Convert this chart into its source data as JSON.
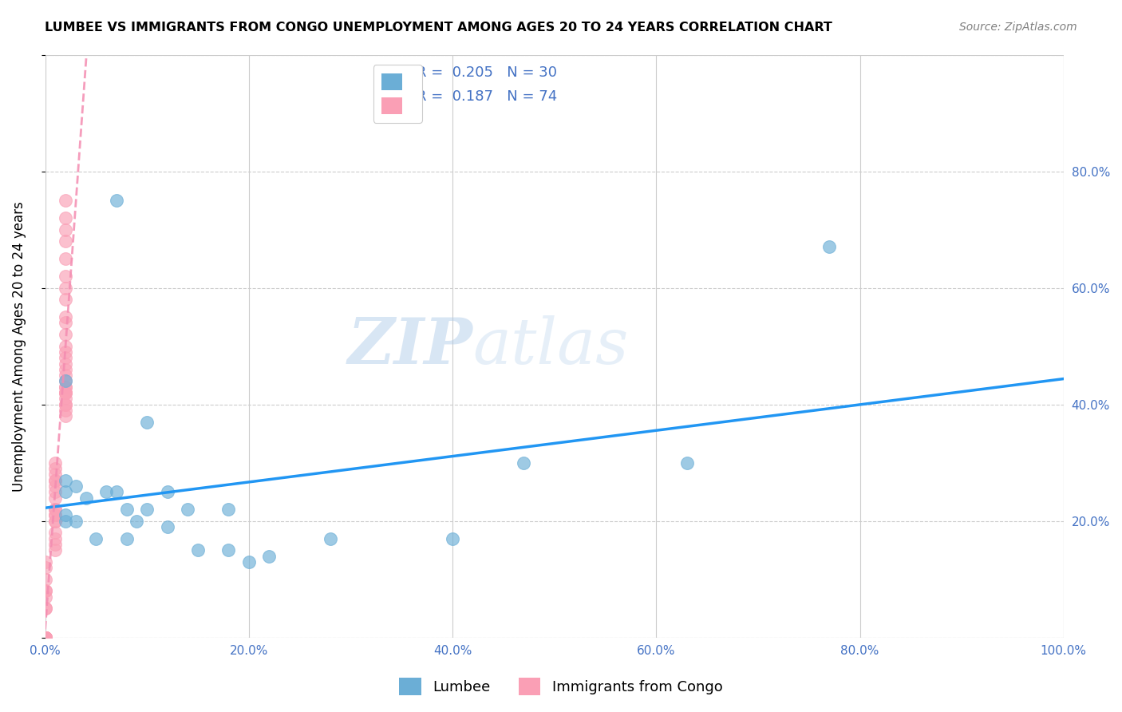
{
  "title": "LUMBEE VS IMMIGRANTS FROM CONGO UNEMPLOYMENT AMONG AGES 20 TO 24 YEARS CORRELATION CHART",
  "source": "Source: ZipAtlas.com",
  "ylabel": "Unemployment Among Ages 20 to 24 years",
  "xlim": [
    0,
    1.0
  ],
  "ylim": [
    0,
    1.0
  ],
  "xticks": [
    0.0,
    0.2,
    0.4,
    0.6,
    0.8,
    1.0
  ],
  "yticks": [
    0.0,
    0.2,
    0.4,
    0.6,
    0.8,
    1.0
  ],
  "xticklabels": [
    "0.0%",
    "20.0%",
    "40.0%",
    "60.0%",
    "80.0%",
    "100.0%"
  ],
  "right_yticklabels": [
    "",
    "20.0%",
    "40.0%",
    "60.0%",
    "80.0%",
    ""
  ],
  "lumbee_color": "#6baed6",
  "congo_color": "#fa9fb5",
  "lumbee_line_color": "#2196F3",
  "congo_line_color": "#f48cb1",
  "lumbee_R": "0.205",
  "lumbee_N": "30",
  "congo_R": "0.187",
  "congo_N": "74",
  "legend_label_1": "Lumbee",
  "legend_label_2": "Immigrants from Congo",
  "watermark_zip": "ZIP",
  "watermark_atlas": "atlas",
  "lumbee_x": [
    0.02,
    0.07,
    0.02,
    0.02,
    0.02,
    0.02,
    0.03,
    0.03,
    0.04,
    0.05,
    0.06,
    0.07,
    0.08,
    0.08,
    0.09,
    0.1,
    0.1,
    0.12,
    0.12,
    0.14,
    0.15,
    0.18,
    0.18,
    0.2,
    0.22,
    0.28,
    0.4,
    0.47,
    0.63,
    0.77
  ],
  "lumbee_y": [
    0.2,
    0.75,
    0.44,
    0.25,
    0.27,
    0.21,
    0.26,
    0.2,
    0.24,
    0.17,
    0.25,
    0.25,
    0.17,
    0.22,
    0.2,
    0.22,
    0.37,
    0.25,
    0.19,
    0.22,
    0.15,
    0.15,
    0.22,
    0.13,
    0.14,
    0.17,
    0.17,
    0.3,
    0.3,
    0.67
  ],
  "congo_x": [
    0.0,
    0.0,
    0.0,
    0.0,
    0.0,
    0.0,
    0.0,
    0.0,
    0.0,
    0.0,
    0.0,
    0.0,
    0.0,
    0.0,
    0.0,
    0.0,
    0.0,
    0.0,
    0.0,
    0.0,
    0.0,
    0.0,
    0.0,
    0.0,
    0.0,
    0.0,
    0.0,
    0.0,
    0.01,
    0.01,
    0.01,
    0.01,
    0.01,
    0.01,
    0.01,
    0.01,
    0.01,
    0.01,
    0.01,
    0.01,
    0.01,
    0.01,
    0.01,
    0.01,
    0.01,
    0.01,
    0.02,
    0.02,
    0.02,
    0.02,
    0.02,
    0.02,
    0.02,
    0.02,
    0.02,
    0.02,
    0.02,
    0.02,
    0.02,
    0.02,
    0.02,
    0.02,
    0.02,
    0.02,
    0.02,
    0.02,
    0.02,
    0.02,
    0.02,
    0.02,
    0.02,
    0.02,
    0.02,
    0.02
  ],
  "congo_y": [
    0.0,
    0.0,
    0.0,
    0.0,
    0.0,
    0.0,
    0.0,
    0.0,
    0.0,
    0.0,
    0.0,
    0.0,
    0.0,
    0.0,
    0.0,
    0.0,
    0.0,
    0.0,
    0.0,
    0.0,
    0.05,
    0.05,
    0.07,
    0.08,
    0.08,
    0.1,
    0.12,
    0.13,
    0.15,
    0.16,
    0.17,
    0.18,
    0.2,
    0.2,
    0.21,
    0.21,
    0.22,
    0.22,
    0.24,
    0.25,
    0.26,
    0.27,
    0.27,
    0.28,
    0.29,
    0.3,
    0.38,
    0.39,
    0.4,
    0.4,
    0.41,
    0.42,
    0.42,
    0.42,
    0.43,
    0.43,
    0.44,
    0.45,
    0.46,
    0.47,
    0.48,
    0.49,
    0.5,
    0.52,
    0.54,
    0.55,
    0.58,
    0.6,
    0.62,
    0.65,
    0.68,
    0.7,
    0.72,
    0.75
  ]
}
